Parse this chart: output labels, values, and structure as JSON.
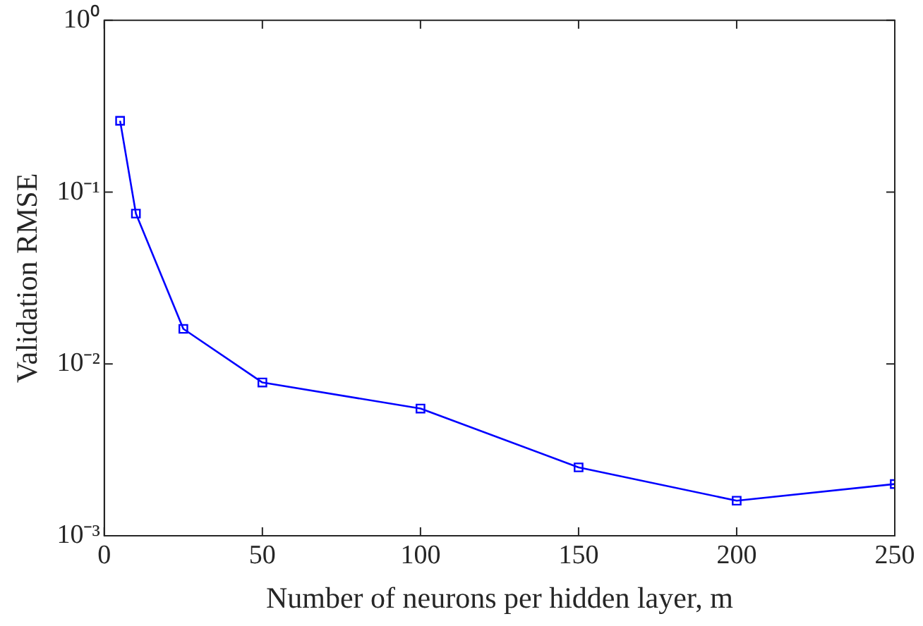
{
  "chart_data": {
    "type": "line",
    "xlabel": "Number of neurons per hidden layer, m",
    "ylabel": "Validation RMSE",
    "x": [
      5,
      10,
      25,
      50,
      100,
      150,
      200,
      250
    ],
    "series": [
      {
        "color": "#0000ff",
        "values": [
          0.26,
          0.075,
          0.016,
          0.0078,
          0.0055,
          0.0025,
          0.0016,
          0.002
        ]
      }
    ],
    "xlim": [
      0,
      250
    ],
    "xticks": [
      0,
      50,
      100,
      150,
      200,
      250
    ],
    "ylim": [
      0.001,
      1
    ],
    "yticks": [
      {
        "value": 0.001,
        "label": "10⁻³"
      },
      {
        "value": 0.01,
        "label": "10⁻²"
      },
      {
        "value": 0.1,
        "label": "10⁻¹"
      },
      {
        "value": 1,
        "label": "10⁰"
      }
    ],
    "log": "y",
    "grid": false,
    "legend": false,
    "marker": "square",
    "line_style": "solid"
  }
}
